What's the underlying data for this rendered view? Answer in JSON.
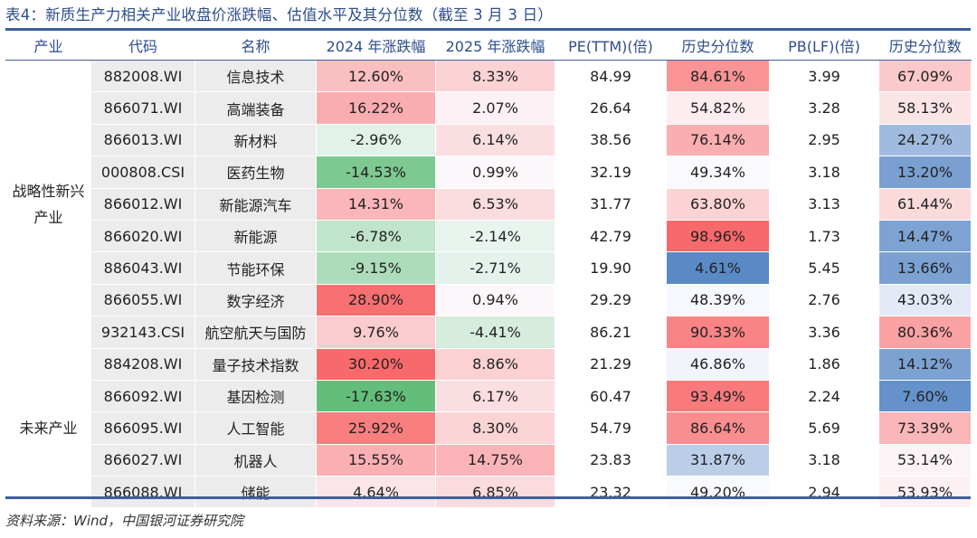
{
  "title": "表4：新质生产力相关产业收盘价涨跌幅、估值水平及其分位数（截至 3 月 3 日）",
  "headers": [
    "产业",
    "代码",
    "名称",
    "2024 年涨跌幅",
    "2025 年涨跌幅",
    "PE(TTM)(倍)",
    "历史分位数",
    "PB(LF)(倍)",
    "历史分位数"
  ],
  "groups": [
    {
      "label": "战略性新兴产业",
      "rows": 9
    },
    {
      "label": "未来产业",
      "rows": 5
    }
  ],
  "rows": [
    {
      "code": "882008.WI",
      "name": "信息技术",
      "chg2024": "12.60%",
      "chg2025": "8.33%",
      "pe": "84.99",
      "pe_pct": "84.61%",
      "pb": "3.99",
      "pb_pct": "67.09%"
    },
    {
      "code": "866071.WI",
      "name": "高端装备",
      "chg2024": "16.22%",
      "chg2025": "2.07%",
      "pe": "26.64",
      "pe_pct": "54.82%",
      "pb": "3.28",
      "pb_pct": "58.13%"
    },
    {
      "code": "866013.WI",
      "name": "新材料",
      "chg2024": "-2.96%",
      "chg2025": "6.14%",
      "pe": "38.56",
      "pe_pct": "76.14%",
      "pb": "2.95",
      "pb_pct": "24.27%"
    },
    {
      "code": "000808.CSI",
      "name": "医药生物",
      "chg2024": "-14.53%",
      "chg2025": "0.99%",
      "pe": "32.19",
      "pe_pct": "49.34%",
      "pb": "3.18",
      "pb_pct": "13.20%"
    },
    {
      "code": "866012.WI",
      "name": "新能源汽车",
      "chg2024": "14.31%",
      "chg2025": "6.53%",
      "pe": "31.77",
      "pe_pct": "63.80%",
      "pb": "3.13",
      "pb_pct": "61.44%"
    },
    {
      "code": "866020.WI",
      "name": "新能源",
      "chg2024": "-6.78%",
      "chg2025": "-2.14%",
      "pe": "42.79",
      "pe_pct": "98.96%",
      "pb": "1.73",
      "pb_pct": "14.47%"
    },
    {
      "code": "886043.WI",
      "name": "节能环保",
      "chg2024": "-9.15%",
      "chg2025": "-2.71%",
      "pe": "19.90",
      "pe_pct": "4.61%",
      "pb": "5.45",
      "pb_pct": "13.66%"
    },
    {
      "code": "866055.WI",
      "name": "数字经济",
      "chg2024": "28.90%",
      "chg2025": "0.94%",
      "pe": "29.29",
      "pe_pct": "48.39%",
      "pb": "2.76",
      "pb_pct": "43.03%"
    },
    {
      "code": "932143.CSI",
      "name": "航空航天与国防",
      "chg2024": "9.76%",
      "chg2025": "-4.41%",
      "pe": "86.21",
      "pe_pct": "90.33%",
      "pb": "3.36",
      "pb_pct": "80.36%"
    },
    {
      "code": "884208.WI",
      "name": "量子技术指数",
      "chg2024": "30.20%",
      "chg2025": "8.86%",
      "pe": "21.29",
      "pe_pct": "46.86%",
      "pb": "1.86",
      "pb_pct": "14.12%"
    },
    {
      "code": "866092.WI",
      "name": "基因检测",
      "chg2024": "-17.63%",
      "chg2025": "6.17%",
      "pe": "60.47",
      "pe_pct": "93.49%",
      "pb": "2.24",
      "pb_pct": "7.60%"
    },
    {
      "code": "866095.WI",
      "name": "人工智能",
      "chg2024": "25.92%",
      "chg2025": "8.30%",
      "pe": "54.79",
      "pe_pct": "86.64%",
      "pb": "5.69",
      "pb_pct": "73.39%"
    },
    {
      "code": "866027.WI",
      "name": "机器人",
      "chg2024": "15.55%",
      "chg2025": "14.75%",
      "pe": "23.83",
      "pe_pct": "31.87%",
      "pb": "3.18",
      "pb_pct": "53.14%"
    },
    {
      "code": "866088.WI",
      "name": "储能",
      "chg2024": "4.64%",
      "chg2025": "6.85%",
      "pe": "23.32",
      "pe_pct": "49.20%",
      "pb": "2.94",
      "pb_pct": "53.93%"
    }
  ],
  "colors": {
    "header_text": "#2e4e8f",
    "rule": "#3e5f9e",
    "gray_cell": "#ececec",
    "up_strong": "#f8696b",
    "down_strong": "#63be7b",
    "pct_high": "#f8696b",
    "pct_low": "#5a8ac6",
    "neutral": "#fcfcff"
  },
  "source": "资料来源：Wind，中国银河证券研究院"
}
